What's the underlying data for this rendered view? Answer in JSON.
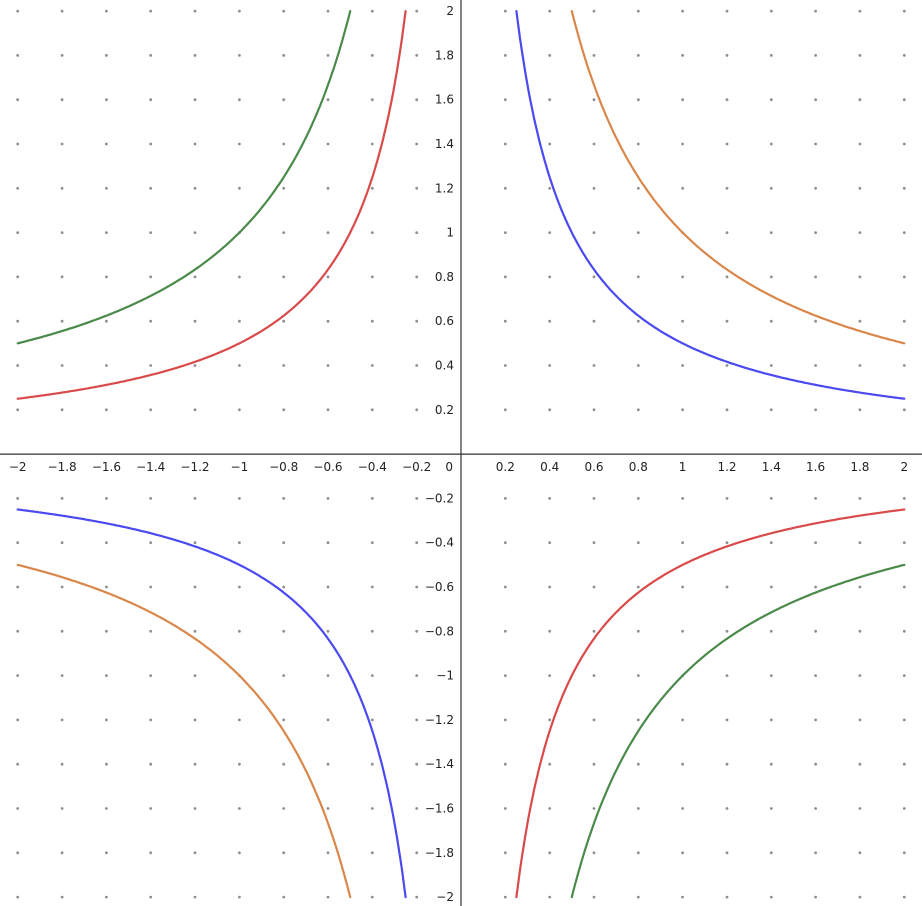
{
  "chart_data": {
    "type": "line",
    "title": "",
    "xlabel": "",
    "ylabel": "",
    "xlim": [
      -2.08,
      2.08
    ],
    "ylim": [
      -2.04,
      2.05
    ],
    "grid": "dots",
    "legend": "none",
    "x_ticks": [
      -2,
      -1.8,
      -1.6,
      -1.4,
      -1.2,
      -1,
      -0.8,
      -0.6,
      -0.4,
      -0.2,
      0.2,
      0.4,
      0.6,
      0.8,
      1,
      1.2,
      1.4,
      1.6,
      1.8,
      2
    ],
    "x_tick_labels": [
      "−2",
      "−1.8",
      "−1.6",
      "−1.4",
      "−1.2",
      "−1",
      "−0.8",
      "−0.6",
      "−0.4",
      "−0.2",
      "0.2",
      "0.4",
      "0.6",
      "0.8",
      "1",
      "1.2",
      "1.4",
      "1.6",
      "1.8",
      "2"
    ],
    "y_ticks": [
      2,
      1.8,
      1.6,
      1.4,
      1.2,
      1,
      0.8,
      0.6,
      0.4,
      0.2,
      -0.2,
      -0.4,
      -0.6,
      -0.8,
      -1,
      -1.2,
      -1.4,
      -1.6,
      -1.8,
      -2
    ],
    "y_tick_labels": [
      "2",
      "1.8",
      "1.6",
      "1.4",
      "1.2",
      "1",
      "0.8",
      "0.6",
      "0.4",
      "0.2",
      "−0.2",
      "−0.4",
      "−0.6",
      "−0.8",
      "−1",
      "−1.2",
      "−1.4",
      "−1.6",
      "−1.8",
      "−2"
    ],
    "origin_label": "0",
    "series": [
      {
        "color": "#4a4af0",
        "x": [
          -2,
          -1.6,
          -1.2,
          -1,
          -0.8,
          -0.6,
          -0.4,
          -0.3,
          -0.25,
          0.25,
          0.3,
          0.4,
          0.6,
          0.8,
          1,
          1.2,
          1.6,
          2
        ],
        "y": [
          -0.25,
          -0.3125,
          -0.4167,
          -0.5,
          -0.625,
          -0.8333,
          -1.25,
          -1.6667,
          -2,
          2,
          1.6667,
          1.25,
          0.8333,
          0.625,
          0.5,
          0.4167,
          0.3125,
          0.25
        ]
      },
      {
        "color": "#d9874a",
        "x": [
          -2,
          -1.6,
          -1.2,
          -1,
          -0.8,
          -0.6,
          -0.5,
          0.5,
          0.6,
          0.8,
          1,
          1.2,
          1.6,
          2
        ],
        "y": [
          -0.5,
          -0.625,
          -0.8333,
          -1,
          -1.25,
          -1.6667,
          -2,
          2,
          1.6667,
          1.25,
          1,
          0.8333,
          0.625,
          0.5
        ]
      },
      {
        "color": "#d94a4a",
        "x": [
          -2,
          -1.6,
          -1.2,
          -1,
          -0.8,
          -0.6,
          -0.4,
          -0.3,
          -0.25,
          0.25,
          0.3,
          0.4,
          0.6,
          0.8,
          1,
          1.2,
          1.6,
          2
        ],
        "y": [
          0.25,
          0.3125,
          0.4167,
          0.5,
          0.625,
          0.8333,
          1.25,
          1.6667,
          2,
          -2,
          -1.6667,
          -1.25,
          -0.8333,
          -0.625,
          -0.5,
          -0.4167,
          -0.3125,
          -0.25
        ]
      },
      {
        "color": "#4a8a4a",
        "x": [
          -2,
          -1.6,
          -1.2,
          -1,
          -0.8,
          -0.6,
          -0.5,
          0.5,
          0.6,
          0.8,
          1,
          1.2,
          1.6,
          2
        ],
        "y": [
          0.5,
          0.625,
          0.8333,
          1,
          1.25,
          1.6667,
          2,
          -2,
          -1.6667,
          -1.25,
          -1,
          -0.8333,
          -0.625,
          -0.5
        ]
      }
    ]
  }
}
